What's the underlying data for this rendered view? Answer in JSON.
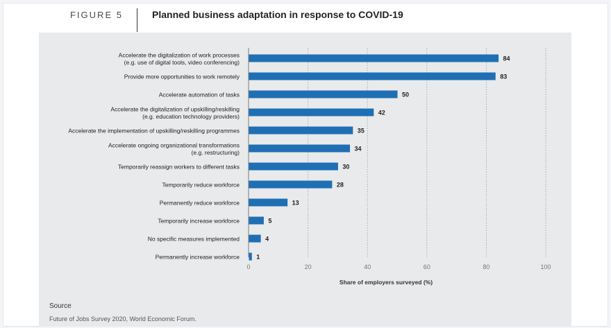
{
  "figure": {
    "label": "FIGURE 5",
    "title": "Planned business adaptation in response to COVID-19"
  },
  "source": {
    "label": "Source",
    "text": "Future of Jobs Survey 2020, World Economic Forum."
  },
  "colors": {
    "bar": "#1f6fb5",
    "panel": "#e9eaeb",
    "grid": "#9a9a9a"
  },
  "chart_data": {
    "type": "bar",
    "orientation": "horizontal",
    "categories": [
      "Accelerate the digitalization of work processes\n(e.g. use of digital tools, video conferencing)",
      "Provide more opportunities to work remotely",
      "Accelerate automation of tasks",
      "Accelerate the digitalization of upskilling/reskilling\n(e.g. education technology providers)",
      "Accelerate the implementation of upskilling/reskilling programmes",
      "Accelerate ongoing organizational transformations\n(e.g. restructuring)",
      "Temporarily reassign workers to different tasks",
      "Temporarily reduce workforce",
      "Permanently reduce workforce",
      "Temporarily increase workforce",
      "No specific measures implemented",
      "Permanently increase workforce"
    ],
    "values": [
      84,
      83,
      50,
      42,
      35,
      34,
      30,
      28,
      13,
      5,
      4,
      1
    ],
    "xlabel": "Share of employers surveyed (%)",
    "ylabel": "",
    "xlim": [
      0,
      100
    ],
    "xticks": [
      0,
      20,
      40,
      60,
      80,
      100
    ],
    "grid": "vertical dotted",
    "data_labels": true
  }
}
